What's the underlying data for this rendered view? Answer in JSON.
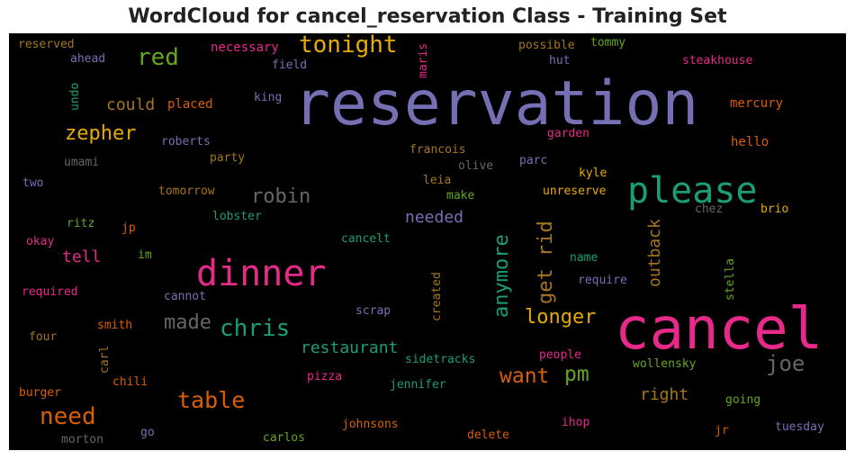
{
  "title": "WordCloud for cancel_reservation Class - Training Set",
  "palette": {
    "purple": "#7570b3",
    "pink": "#e7298a",
    "teal": "#1b9e77",
    "orange": "#d95f02",
    "green": "#66a61e",
    "gold": "#e6ab02",
    "brown": "#a6761d",
    "gray": "#666666"
  },
  "words": [
    {
      "id": "reservation",
      "text": "reservation",
      "color": "#7570b3"
    },
    {
      "id": "cancel",
      "text": "cancel",
      "color": "#e7298a"
    },
    {
      "id": "dinner",
      "text": "dinner",
      "color": "#e7298a"
    },
    {
      "id": "please",
      "text": "please",
      "color": "#1b9e77"
    },
    {
      "id": "tonight",
      "text": "tonight",
      "color": "#e6ab02"
    },
    {
      "id": "red",
      "text": "red",
      "color": "#66a61e"
    },
    {
      "id": "zepher",
      "text": "zepher",
      "color": "#e6ab02"
    },
    {
      "id": "robin",
      "text": "robin",
      "color": "#666666"
    },
    {
      "id": "chris",
      "text": "chris",
      "color": "#1b9e77"
    },
    {
      "id": "made",
      "text": "made",
      "color": "#666666"
    },
    {
      "id": "table",
      "text": "table",
      "color": "#d95f02"
    },
    {
      "id": "need",
      "text": "need",
      "color": "#d95f02"
    },
    {
      "id": "anymore",
      "text": "anymore",
      "color": "#1b9e77"
    },
    {
      "id": "get-rid",
      "text": "get rid",
      "color": "#a6761d"
    },
    {
      "id": "longer",
      "text": "longer",
      "color": "#e6ab02"
    },
    {
      "id": "want",
      "text": "want",
      "color": "#d95f02"
    },
    {
      "id": "pm",
      "text": "pm",
      "color": "#66a61e"
    },
    {
      "id": "joe",
      "text": "joe",
      "color": "#666666"
    },
    {
      "id": "restaurant",
      "text": "restaurant",
      "color": "#1b9e77"
    },
    {
      "id": "could",
      "text": "could",
      "color": "#a6761d"
    },
    {
      "id": "tell",
      "text": "tell",
      "color": "#e7298a"
    },
    {
      "id": "needed",
      "text": "needed",
      "color": "#7570b3"
    },
    {
      "id": "outback",
      "text": "outback",
      "color": "#a6761d"
    },
    {
      "id": "right",
      "text": "right",
      "color": "#a6761d"
    },
    {
      "id": "reserved",
      "text": "reserved",
      "color": "#a6761d"
    },
    {
      "id": "ahead",
      "text": "ahead",
      "color": "#7570b3"
    },
    {
      "id": "necessary",
      "text": "necessary",
      "color": "#e7298a"
    },
    {
      "id": "field",
      "text": "field",
      "color": "#7570b3"
    },
    {
      "id": "maris",
      "text": "maris",
      "color": "#e7298a"
    },
    {
      "id": "possible",
      "text": "possible",
      "color": "#a6761d"
    },
    {
      "id": "tommy",
      "text": "tommy",
      "color": "#66a61e"
    },
    {
      "id": "hut",
      "text": "hut",
      "color": "#7570b3"
    },
    {
      "id": "steakhouse",
      "text": "steakhouse",
      "color": "#e7298a"
    },
    {
      "id": "undo",
      "text": "undo",
      "color": "#1b9e77"
    },
    {
      "id": "placed",
      "text": "placed",
      "color": "#d95f02"
    },
    {
      "id": "king",
      "text": "king",
      "color": "#7570b3"
    },
    {
      "id": "mercury",
      "text": "mercury",
      "color": "#d95f02"
    },
    {
      "id": "roberts",
      "text": "roberts",
      "color": "#7570b3"
    },
    {
      "id": "francois",
      "text": "francois",
      "color": "#a6761d"
    },
    {
      "id": "garden",
      "text": "garden",
      "color": "#e7298a"
    },
    {
      "id": "hello",
      "text": "hello",
      "color": "#d95f02"
    },
    {
      "id": "umami",
      "text": "umami",
      "color": "#666666"
    },
    {
      "id": "party",
      "text": "party",
      "color": "#a6761d"
    },
    {
      "id": "olive",
      "text": "olive",
      "color": "#666666"
    },
    {
      "id": "parc",
      "text": "parc",
      "color": "#7570b3"
    },
    {
      "id": "kyle",
      "text": "kyle",
      "color": "#e6ab02"
    },
    {
      "id": "two",
      "text": "two",
      "color": "#7570b3"
    },
    {
      "id": "tomorrow",
      "text": "tomorrow",
      "color": "#a6761d"
    },
    {
      "id": "leia",
      "text": "leia",
      "color": "#a6761d"
    },
    {
      "id": "make",
      "text": "make",
      "color": "#66a61e"
    },
    {
      "id": "unreserve",
      "text": "unreserve",
      "color": "#e6ab02"
    },
    {
      "id": "chez",
      "text": "chez",
      "color": "#666666"
    },
    {
      "id": "brio",
      "text": "brio",
      "color": "#e6ab02"
    },
    {
      "id": "ritz",
      "text": "ritz",
      "color": "#66a61e"
    },
    {
      "id": "jp",
      "text": "jp",
      "color": "#d95f02"
    },
    {
      "id": "lobster",
      "text": "lobster",
      "color": "#1b9e77"
    },
    {
      "id": "okay",
      "text": "okay",
      "color": "#e7298a"
    },
    {
      "id": "im",
      "text": "im",
      "color": "#66a61e"
    },
    {
      "id": "cancelt",
      "text": "cancelt",
      "color": "#1b9e77"
    },
    {
      "id": "name",
      "text": "name",
      "color": "#1b9e77"
    },
    {
      "id": "stella",
      "text": "stella",
      "color": "#66a61e"
    },
    {
      "id": "required",
      "text": "required",
      "color": "#e7298a"
    },
    {
      "id": "cannot",
      "text": "cannot",
      "color": "#7570b3"
    },
    {
      "id": "created",
      "text": "created",
      "color": "#a6761d"
    },
    {
      "id": "require",
      "text": "require",
      "color": "#7570b3"
    },
    {
      "id": "smith",
      "text": "smith",
      "color": "#d95f02"
    },
    {
      "id": "scrap",
      "text": "scrap",
      "color": "#7570b3"
    },
    {
      "id": "four",
      "text": "four",
      "color": "#a6761d"
    },
    {
      "id": "carl",
      "text": "carl",
      "color": "#a6761d"
    },
    {
      "id": "people",
      "text": "people",
      "color": "#e7298a"
    },
    {
      "id": "sidetracks",
      "text": "sidetracks",
      "color": "#1b9e77"
    },
    {
      "id": "wollensky",
      "text": "wollensky",
      "color": "#66a61e"
    },
    {
      "id": "chili",
      "text": "chili",
      "color": "#d95f02"
    },
    {
      "id": "pizza",
      "text": "pizza",
      "color": "#e7298a"
    },
    {
      "id": "burger",
      "text": "burger",
      "color": "#d95f02"
    },
    {
      "id": "jennifer",
      "text": "jennifer",
      "color": "#1b9e77"
    },
    {
      "id": "going",
      "text": "going",
      "color": "#66a61e"
    },
    {
      "id": "ihop",
      "text": "ihop",
      "color": "#e7298a"
    },
    {
      "id": "johnsons",
      "text": "johnsons",
      "color": "#d95f02"
    },
    {
      "id": "tuesday",
      "text": "tuesday",
      "color": "#7570b3"
    },
    {
      "id": "jr",
      "text": "jr",
      "color": "#d95f02"
    },
    {
      "id": "morton",
      "text": "morton",
      "color": "#666666"
    },
    {
      "id": "go",
      "text": "go",
      "color": "#7570b3"
    },
    {
      "id": "carlos",
      "text": "carlos",
      "color": "#66a61e"
    },
    {
      "id": "delete",
      "text": "delete",
      "color": "#d95f02"
    }
  ]
}
